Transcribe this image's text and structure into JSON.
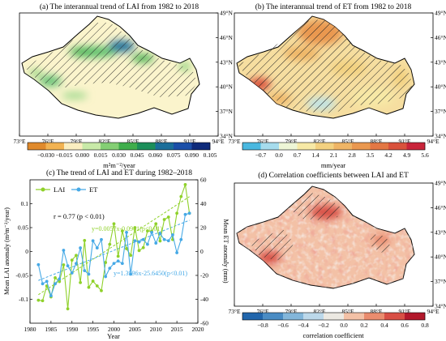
{
  "chart_data": [
    {
      "id": "a",
      "type": "heatmap",
      "title": "(a) The interannual trend of LAI from 1982 to 2018",
      "x_ticks": [
        "73°E",
        "76°E",
        "79°E",
        "82°E",
        "85°E",
        "88°E",
        "91°E",
        "94°E"
      ],
      "y_ticks": [
        "34°N",
        "37°N",
        "40°N",
        "43°N",
        "46°N",
        "49°N"
      ],
      "y_side": "right",
      "colorbar": {
        "labels": [
          "−0.030",
          "−0.015",
          "0.000",
          "0.015",
          "0.030",
          "0.045",
          "0.060",
          "0.075",
          "0.090",
          "0.105"
        ],
        "colors": [
          "#e08a2c",
          "#f2b352",
          "#faeec0",
          "#c8eaa8",
          "#84cf74",
          "#3fae4c",
          "#1c8f5a",
          "#1b6e9a",
          "#1b4fa8",
          "#0e2a7a"
        ],
        "unit": "m²m⁻²/year"
      }
    },
    {
      "id": "b",
      "type": "heatmap",
      "title": "(b) The interannual trend of ET from 1982 to 2018",
      "x_ticks": [
        "73°E",
        "76°E",
        "79°E",
        "82°E",
        "85°E",
        "88°E",
        "91°E",
        "94°E"
      ],
      "y_ticks": [
        "34°N",
        "37°N",
        "40°N",
        "43°N",
        "46°N",
        "49°N"
      ],
      "y_side": "right",
      "colorbar": {
        "labels": [
          "−0.7",
          "0.0",
          "0.7",
          "1.4",
          "2.1",
          "2.8",
          "3.5",
          "4.2",
          "4.9",
          "5.6"
        ],
        "colors": [
          "#4ab8e0",
          "#a6dced",
          "#eef6d6",
          "#f7e9a6",
          "#f3d180",
          "#efb566",
          "#ea9850",
          "#e37744",
          "#d9523c",
          "#c9243a"
        ],
        "unit": "mm/year"
      }
    },
    {
      "id": "c",
      "type": "line",
      "title": "(c) The trend of LAI and ET during 1982–2018",
      "xlabel": "Year",
      "ylabel_left": "Mean LAI anomaly (m²m⁻²/year)",
      "ylabel_right": "Mean ET anomaly (mm)",
      "x_ticks": [
        1980,
        1985,
        1990,
        1995,
        2000,
        2005,
        2010,
        2015,
        2020
      ],
      "xlim": [
        1980,
        2020
      ],
      "ylim_left": [
        -0.15,
        0.15
      ],
      "ylim_right": [
        -60,
        60
      ],
      "y_ticks_left": [
        -0.1,
        -0.05,
        0,
        0.05,
        0.1
      ],
      "y_ticks_right": [
        -60,
        -40,
        -20,
        0,
        20,
        40,
        60
      ],
      "x": [
        1982,
        1983,
        1984,
        1985,
        1986,
        1987,
        1988,
        1989,
        1990,
        1991,
        1992,
        1993,
        1994,
        1995,
        1996,
        1997,
        1998,
        1999,
        2000,
        2001,
        2002,
        2003,
        2004,
        2005,
        2006,
        2007,
        2008,
        2009,
        2010,
        2011,
        2012,
        2013,
        2014,
        2015,
        2016,
        2017,
        2018
      ],
      "series": [
        {
          "name": "LAI",
          "axis": "left",
          "color": "#8fd12a",
          "values": [
            -0.102,
            -0.103,
            -0.072,
            -0.095,
            -0.055,
            -0.063,
            -0.028,
            -0.12,
            -0.018,
            -0.008,
            -0.065,
            0.023,
            -0.075,
            -0.062,
            -0.072,
            -0.082,
            -0.023,
            0.015,
            0.058,
            -0.01,
            0.043,
            0.006,
            -0.008,
            0.05,
            0.002,
            0.008,
            0.043,
            0.042,
            0.058,
            0.022,
            0.067,
            0.072,
            0.025,
            0.08,
            0.115,
            0.14,
            0.08
          ]
        },
        {
          "name": "ET",
          "axis": "right",
          "color": "#46a9e6",
          "values": [
            -11,
            -27,
            -25,
            -37,
            -27,
            -23,
            1,
            -12,
            -18,
            -10,
            3,
            -16,
            -19,
            9,
            3,
            10,
            -21,
            -14,
            -10,
            -8,
            -10,
            16,
            -19,
            9,
            8,
            10,
            6,
            16,
            7,
            15,
            10,
            9,
            14,
            -1,
            10,
            31,
            32
          ]
        }
      ],
      "fits": [
        {
          "label": "y=0.0057x-0.0961(p<0.01)",
          "series": "LAI",
          "slope": 0.0057,
          "intercept": -0.0961,
          "color": "#8fd12a"
        },
        {
          "label": "y=1.3996x-25.6450(p<0.01)",
          "series": "ET",
          "slope": 1.3996,
          "intercept": -25.645,
          "color": "#46a9e6"
        }
      ],
      "annotation": "r = 0.77 (p < 0.01)",
      "legend_position": "top-left"
    },
    {
      "id": "d",
      "type": "heatmap",
      "title": "(d) Correlation coefficients between LAI and ET",
      "x_ticks": [
        "73°E",
        "76°E",
        "79°E",
        "82°E",
        "85°E",
        "88°E",
        "91°E",
        "94°E"
      ],
      "y_ticks": [
        "34°N",
        "37°N",
        "40°N",
        "43°N",
        "46°N",
        "49°N"
      ],
      "y_side": "right",
      "colorbar": {
        "labels": [
          "−0.8",
          "−0.6",
          "−0.4",
          "−0.2",
          "0.0",
          "0.2",
          "0.4",
          "0.6",
          "0.8"
        ],
        "colors": [
          "#2166ac",
          "#4a8cc4",
          "#83b6da",
          "#bcd8ea",
          "#ece9e2",
          "#f3c1a6",
          "#ea8c6e",
          "#d84f45",
          "#b2182b"
        ],
        "unit": "correlation coefficient"
      }
    }
  ]
}
